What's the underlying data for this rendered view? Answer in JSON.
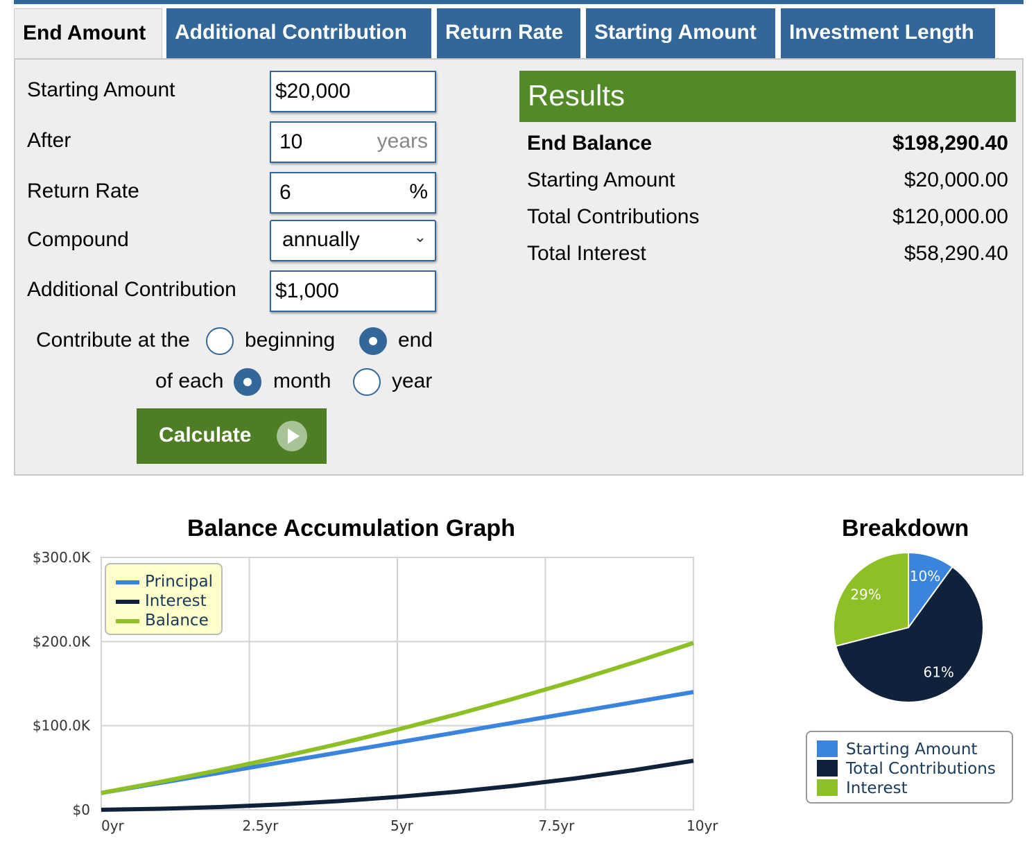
{
  "tabs": [
    {
      "label": "End Amount",
      "active": true
    },
    {
      "label": "Additional Contribution",
      "active": false
    },
    {
      "label": "Return Rate",
      "active": false
    },
    {
      "label": "Starting Amount",
      "active": false
    },
    {
      "label": "Investment Length",
      "active": false
    }
  ],
  "form": {
    "starting_amount_label": "Starting Amount",
    "starting_amount_value": "$20,000",
    "after_label": "After",
    "after_value": "10",
    "after_suffix": "years",
    "return_rate_label": "Return Rate",
    "return_rate_value": "6",
    "return_rate_suffix": "%",
    "compound_label": "Compound",
    "compound_value": "annually",
    "additional_label": "Additional Contribution",
    "additional_value": "$1,000",
    "contribute_label": "Contribute at the",
    "beginning_label": "beginning",
    "end_label": "end",
    "contribute_selected": "end",
    "of_each_label": "of each",
    "month_label": "month",
    "year_label": "year",
    "period_selected": "month",
    "calculate_label": "Calculate"
  },
  "results": {
    "title": "Results",
    "rows": [
      {
        "label": "End Balance",
        "value": "$198,290.40",
        "bold": true
      },
      {
        "label": "Starting Amount",
        "value": "$20,000.00",
        "bold": false
      },
      {
        "label": "Total Contributions",
        "value": "$120,000.00",
        "bold": false
      },
      {
        "label": "Total Interest",
        "value": "$58,290.40",
        "bold": false
      }
    ]
  },
  "colors": {
    "tab_blue": "#336699",
    "results_green": "#518a27",
    "calc_green": "#4e7e24",
    "principal": "#3a84dd",
    "interest": "#10213b",
    "balance": "#8dbf26"
  },
  "chart_data": [
    {
      "type": "line",
      "title": "Balance Accumulation Graph",
      "x": [
        0,
        1,
        2,
        3,
        4,
        5,
        6,
        7,
        8,
        9,
        10
      ],
      "x_tick_labels": [
        "0yr",
        "2.5yr",
        "5yr",
        "7.5yr",
        "10yr"
      ],
      "x_ticks": [
        0,
        2.5,
        5,
        7.5,
        10
      ],
      "y_tick_labels": [
        "$0",
        "$100.0K",
        "$200.0K",
        "$300.0K"
      ],
      "y_ticks": [
        0,
        100000,
        200000,
        300000
      ],
      "ylim": [
        0,
        300000
      ],
      "xlim": [
        0,
        10
      ],
      "grid": true,
      "legend_position": "top-left",
      "series": [
        {
          "name": "Principal",
          "color": "#3a84dd",
          "values": [
            20000,
            32000,
            44000,
            56000,
            68000,
            80000,
            92000,
            104000,
            116000,
            128000,
            140000
          ]
        },
        {
          "name": "Interest",
          "color": "#10213b",
          "values": [
            0,
            1200,
            3270,
            6270,
            10260,
            15300,
            21440,
            28760,
            37320,
            47190,
            58290
          ]
        },
        {
          "name": "Balance",
          "color": "#8dbf26",
          "values": [
            20000,
            33200,
            47270,
            62270,
            78260,
            95300,
            113440,
            132760,
            153320,
            175190,
            198290
          ]
        }
      ]
    },
    {
      "type": "pie",
      "title": "Breakdown",
      "legend_position": "bottom",
      "slices": [
        {
          "name": "Starting Amount",
          "value": 10,
          "label": "10%",
          "color": "#3a84dd"
        },
        {
          "name": "Total Contributions",
          "value": 61,
          "label": "61%",
          "color": "#10213b"
        },
        {
          "name": "Interest",
          "value": 29,
          "label": "29%",
          "color": "#8dbf26"
        }
      ]
    }
  ]
}
